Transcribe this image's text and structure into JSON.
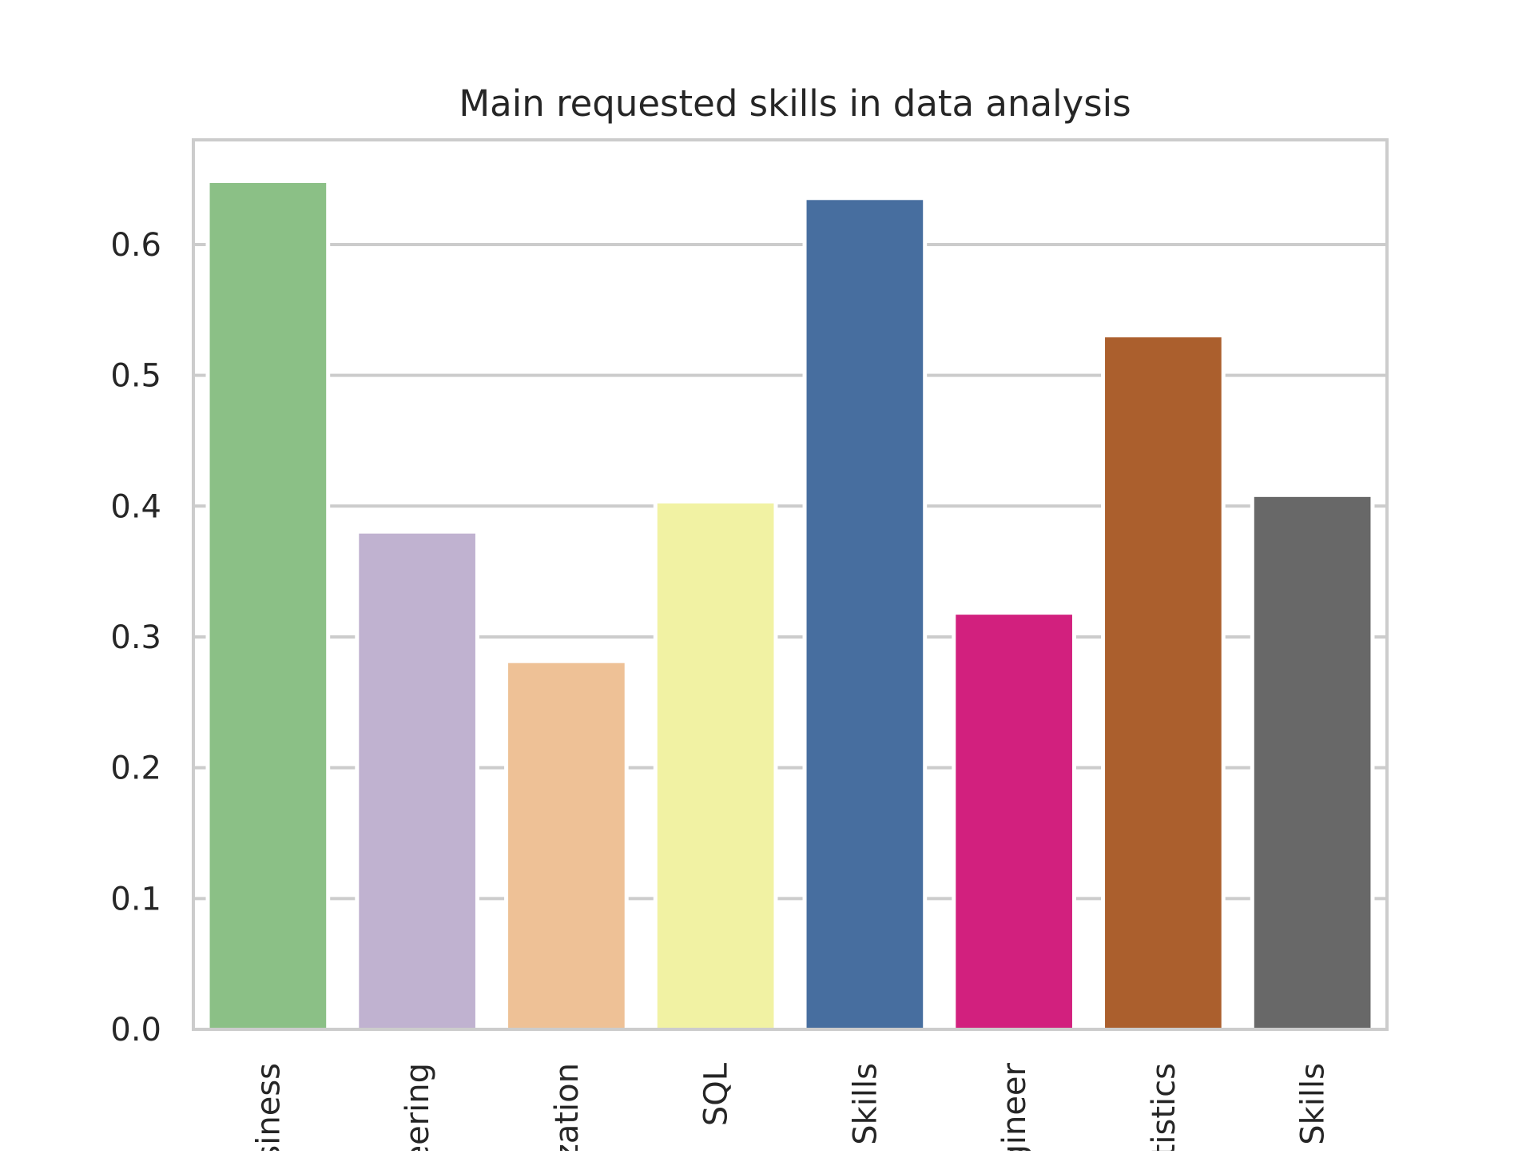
{
  "chart_data": {
    "type": "bar",
    "title": "Main requested skills in data analysis",
    "xlabel": "",
    "ylabel": "",
    "categories": [
      "siness",
      "eering",
      "zation",
      "SQL",
      "Skills",
      "gineer",
      "tistics",
      "Skills"
    ],
    "values": [
      0.647,
      0.379,
      0.28,
      0.402,
      0.634,
      0.317,
      0.529,
      0.407
    ],
    "colors": [
      "#8bc086",
      "#c0b2d0",
      "#eec196",
      "#f1f2a3",
      "#476e9f",
      "#d2207e",
      "#ab5f2d",
      "#686868"
    ],
    "ylim": [
      0,
      0.68
    ],
    "yticks": [
      0.0,
      0.1,
      0.2,
      0.3,
      0.4,
      0.5,
      0.6
    ],
    "ytick_labels": [
      "0.0",
      "0.1",
      "0.2",
      "0.3",
      "0.4",
      "0.5",
      "0.6"
    ],
    "grid": "horizontal",
    "grid_color": "#cccccc",
    "spine_color": "#cccccc",
    "text_color": "#262626"
  }
}
